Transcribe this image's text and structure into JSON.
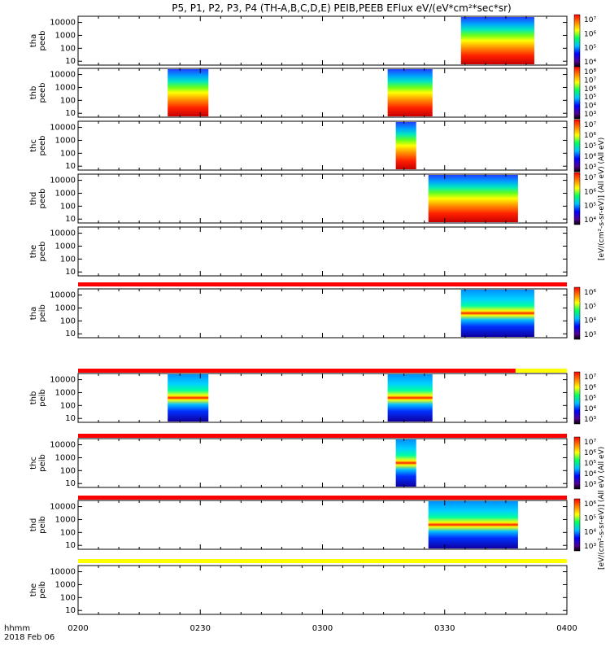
{
  "title": "P5, P1, P2, P3, P4 (TH-A,B,C,D,E) PEIB,PEEB EFlux eV/(eV*cm²*sec*sr)",
  "time_label": "hhmm",
  "date_label": "2018 Feb 06",
  "colorbar_units_electron": "[eV/(cm²-s-sr-eV)] (All eV) (All eV)",
  "colorbar_units_ion": "[eV/(cm²-s-sr-eV)] (All eV) (All eV)",
  "colors": {
    "flag_red": "#ff0000",
    "flag_yellow": "#ffff00"
  },
  "chart_data": {
    "type": "heatmap",
    "x_ticks": [
      "0200",
      "0230",
      "0300",
      "0330",
      "0400"
    ],
    "x_range_minutes": [
      0,
      120
    ],
    "y_scale": "log",
    "y_ticks": [
      "10",
      "100",
      "1000",
      "10000"
    ],
    "y_range_eV": [
      5,
      30000
    ],
    "panels": [
      {
        "label": "tha\npeeb",
        "species": "electron",
        "intervals": [
          [
            94,
            112
          ]
        ],
        "cbar_ticks": [
          "10⁴",
          "10⁵",
          "10⁶",
          "10⁷"
        ],
        "flag": null
      },
      {
        "label": "thb\npeeb",
        "species": "electron",
        "intervals": [
          [
            22,
            32
          ],
          [
            76,
            87
          ]
        ],
        "cbar_ticks": [
          "10³",
          "10⁴",
          "10⁵",
          "10⁶",
          "10⁷",
          "10⁸"
        ],
        "flag": null
      },
      {
        "label": "thc\npeeb",
        "species": "electron",
        "intervals": [
          [
            78,
            83
          ]
        ],
        "cbar_ticks": [
          "10³",
          "10⁴",
          "10⁵",
          "10⁶",
          "10⁷"
        ],
        "flag": null
      },
      {
        "label": "thd\npeeb",
        "species": "electron",
        "intervals": [
          [
            86,
            108
          ]
        ],
        "cbar_ticks": [
          "10⁴",
          "10⁵",
          "10⁶",
          "10⁷"
        ],
        "flag": null
      },
      {
        "label": "the\npeeb",
        "species": "electron",
        "intervals": [],
        "cbar_ticks": [],
        "flag": "red"
      },
      {
        "label": "tha\npeib",
        "species": "ion",
        "intervals": [
          [
            94,
            112
          ]
        ],
        "cbar_ticks": [
          "10³",
          "10⁴",
          "10⁵",
          "10⁶"
        ],
        "flag": "red_yellow"
      },
      {
        "label": "thb\npeib",
        "species": "ion",
        "intervals": [
          [
            22,
            32
          ],
          [
            76,
            87
          ]
        ],
        "cbar_ticks": [
          "10³",
          "10⁴",
          "10⁵",
          "10⁶",
          "10⁷"
        ],
        "flag": "red"
      },
      {
        "label": "thc\npeib",
        "species": "ion",
        "intervals": [
          [
            78,
            83
          ]
        ],
        "cbar_ticks": [
          "10³",
          "10⁴",
          "10⁵",
          "10⁶",
          "10⁷"
        ],
        "flag": "red"
      },
      {
        "label": "thd\npeib",
        "species": "ion",
        "intervals": [
          [
            86,
            108
          ]
        ],
        "cbar_ticks": [
          "10³",
          "10⁴",
          "10⁵",
          "10⁶"
        ],
        "flag": "yellow"
      },
      {
        "label": "the\npeib",
        "species": "ion",
        "intervals": [],
        "cbar_ticks": [],
        "flag": null
      }
    ]
  }
}
